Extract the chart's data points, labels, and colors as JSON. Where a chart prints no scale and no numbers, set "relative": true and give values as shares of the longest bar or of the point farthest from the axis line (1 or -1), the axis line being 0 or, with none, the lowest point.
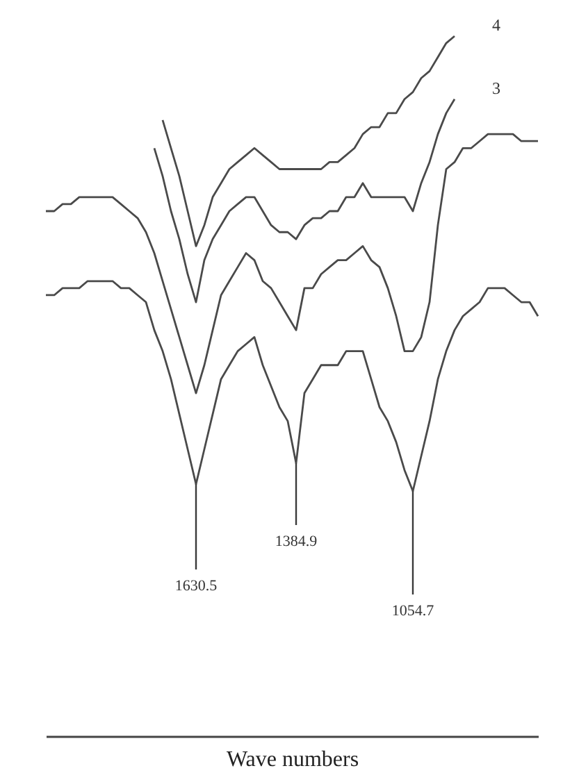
{
  "chart_data": {
    "type": "line",
    "relative": true,
    "xlabel": "Wave numbers",
    "categories": [
      null,
      null,
      null,
      null,
      null,
      null,
      null,
      null,
      null,
      null,
      null,
      null,
      null,
      null,
      null,
      null,
      null,
      null,
      null,
      null,
      null,
      null,
      null,
      null,
      null,
      null,
      null,
      null,
      null,
      null,
      null,
      null,
      null,
      null,
      null,
      null,
      null,
      null,
      null,
      null,
      null,
      null,
      null,
      null,
      null,
      null,
      null,
      null,
      null,
      null,
      null,
      null,
      null,
      null,
      null,
      null,
      null,
      null,
      null,
      null
    ],
    "series": [
      {
        "name": "4",
        "color": "#4a4a4a",
        "values": [
          null,
          null,
          null,
          null,
          null,
          null,
          null,
          null,
          null,
          null,
          null,
          null,
          null,
          null,
          0.88,
          0.84,
          0.8,
          0.75,
          0.7,
          0.73,
          0.77,
          0.79,
          0.81,
          0.82,
          0.83,
          0.84,
          0.83,
          0.82,
          0.81,
          0.81,
          0.81,
          0.81,
          0.81,
          0.81,
          0.82,
          0.82,
          0.83,
          0.84,
          0.86,
          0.87,
          0.87,
          0.89,
          0.89,
          0.91,
          0.92,
          0.94,
          0.95,
          0.97,
          0.99,
          1.0,
          null,
          null,
          null,
          null,
          null,
          null,
          null,
          null,
          null,
          null
        ]
      },
      {
        "name": "3",
        "color": "#4a4a4a",
        "values": [
          null,
          null,
          null,
          null,
          null,
          null,
          null,
          null,
          null,
          null,
          null,
          null,
          null,
          0.84,
          0.8,
          0.75,
          0.71,
          0.66,
          0.62,
          0.68,
          0.71,
          0.73,
          0.75,
          0.76,
          0.77,
          0.77,
          0.75,
          0.73,
          0.72,
          0.72,
          0.71,
          0.73,
          0.74,
          0.74,
          0.75,
          0.75,
          0.77,
          0.77,
          0.79,
          0.77,
          0.77,
          0.77,
          0.77,
          0.77,
          0.75,
          0.79,
          0.82,
          0.86,
          0.89,
          0.91,
          null,
          null,
          null,
          null,
          null,
          null,
          null,
          null,
          null,
          null
        ]
      },
      {
        "color": "#4a4a4a",
        "values": [
          0.75,
          0.75,
          0.76,
          0.76,
          0.77,
          0.77,
          0.77,
          0.77,
          0.77,
          0.76,
          0.75,
          0.74,
          0.72,
          0.69,
          0.65,
          0.61,
          0.57,
          0.53,
          0.49,
          0.53,
          0.58,
          0.63,
          0.65,
          0.67,
          0.69,
          0.68,
          0.65,
          0.64,
          0.62,
          0.6,
          0.58,
          0.64,
          0.64,
          0.66,
          0.67,
          0.68,
          0.68,
          0.69,
          0.7,
          0.68,
          0.67,
          0.64,
          0.6,
          0.55,
          0.55,
          0.57,
          0.62,
          0.73,
          0.81,
          0.82,
          0.84,
          0.84,
          0.85,
          0.86,
          0.86,
          0.86,
          0.86,
          0.85,
          0.85,
          0.85
        ]
      },
      {
        "color": "#4a4a4a",
        "values": [
          0.63,
          0.63,
          0.64,
          0.64,
          0.64,
          0.65,
          0.65,
          0.65,
          0.65,
          0.64,
          0.64,
          0.63,
          0.62,
          0.58,
          0.55,
          0.51,
          0.46,
          0.41,
          0.36,
          0.41,
          0.46,
          0.51,
          0.53,
          0.55,
          0.56,
          0.57,
          0.53,
          0.5,
          0.47,
          0.45,
          0.39,
          0.49,
          0.51,
          0.53,
          0.53,
          0.53,
          0.55,
          0.55,
          0.55,
          0.51,
          0.47,
          0.45,
          0.42,
          0.38,
          0.35,
          0.4,
          0.45,
          0.51,
          0.55,
          0.58,
          0.6,
          0.61,
          0.62,
          0.64,
          0.64,
          0.64,
          0.63,
          0.62,
          0.62,
          0.6
        ]
      }
    ],
    "annotations": [
      "1630.5",
      "1384.9",
      "1054.7"
    ]
  }
}
